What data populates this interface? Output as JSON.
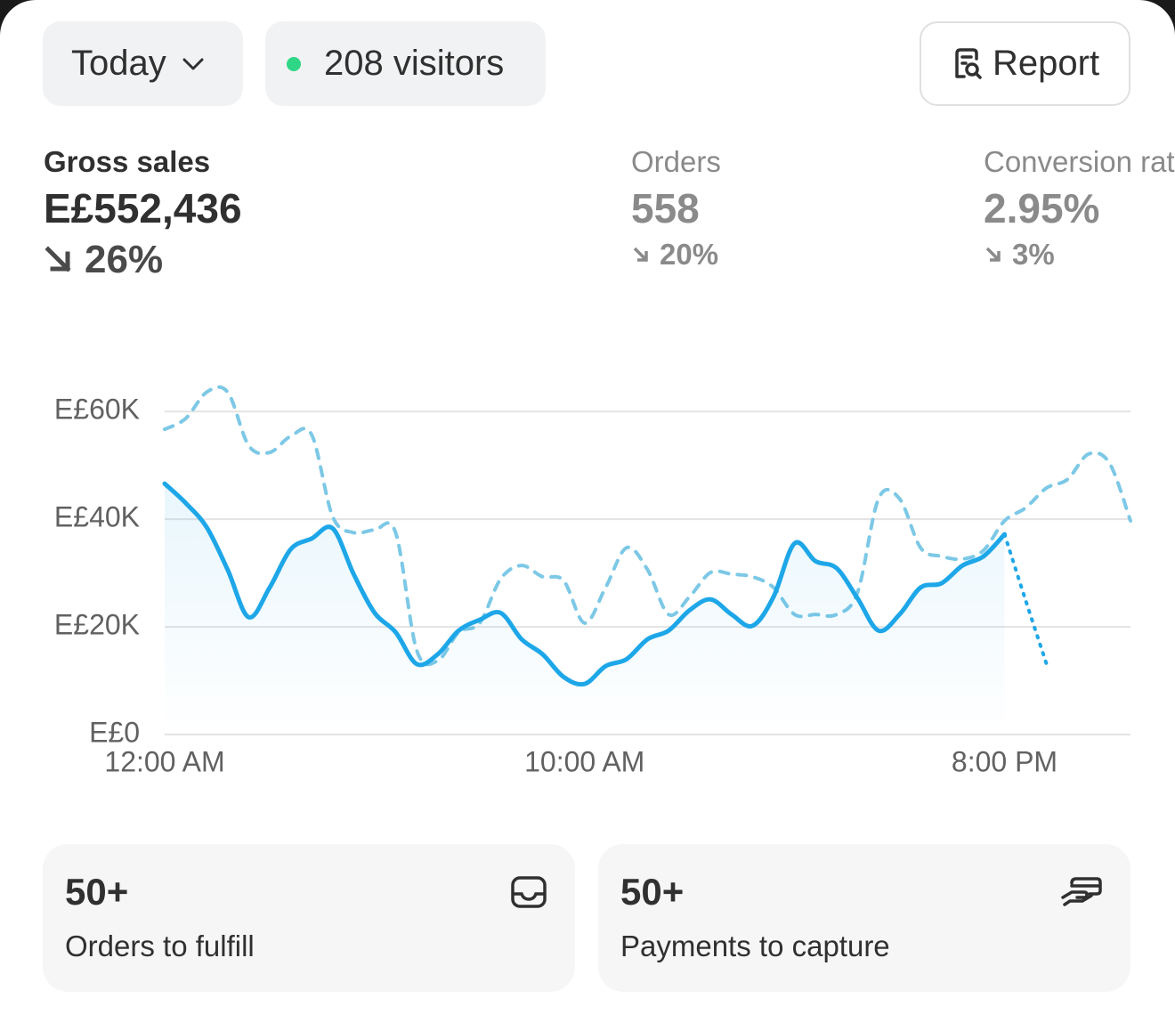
{
  "toolbar": {
    "period": "Today",
    "visitors": "208 visitors",
    "report": "Report"
  },
  "metrics": [
    {
      "label": "Gross sales",
      "value": "E£552,436",
      "change": "26%"
    },
    {
      "label": "Orders",
      "value": "558",
      "change": "20%"
    },
    {
      "label": "Conversion rate",
      "value": "2.95%",
      "change": "3%"
    }
  ],
  "chart_data": {
    "type": "line",
    "x": [
      0,
      0.5,
      1,
      1.5,
      2,
      2.5,
      3,
      3.5,
      4,
      4.5,
      5,
      5.5,
      6,
      6.5,
      7,
      7.5,
      8,
      8.5,
      9,
      9.5,
      10,
      10.5,
      11,
      11.5,
      12,
      12.5,
      13,
      13.5,
      14,
      14.5,
      15,
      15.5,
      16,
      16.5,
      17,
      17.5,
      18,
      18.5,
      19,
      19.5,
      20,
      20.5,
      21,
      21.5,
      22,
      22.5,
      23
    ],
    "series": [
      {
        "color": "#7cc8e6",
        "style": "dashed",
        "values": [
          56700,
          58700,
          63600,
          63600,
          53700,
          52400,
          55400,
          55700,
          40500,
          37500,
          38000,
          37500,
          15700,
          13700,
          19000,
          20700,
          28900,
          31400,
          29300,
          28600,
          20700,
          27300,
          34700,
          30600,
          22300,
          25600,
          30100,
          29800,
          29300,
          27300,
          22300,
          22300,
          22300,
          26400,
          43800,
          43800,
          34700,
          33100,
          32600,
          34200,
          39700,
          42100,
          45800,
          47400,
          52100,
          50400,
          39700
        ]
      },
      {
        "color": "#1ea7e8",
        "style": "solid",
        "area": true,
        "values": [
          46600,
          43000,
          38500,
          30600,
          21800,
          27300,
          34400,
          36400,
          38300,
          29800,
          22600,
          19000,
          13100,
          14900,
          19300,
          21300,
          22600,
          17700,
          14900,
          10700,
          9400,
          12700,
          14000,
          17700,
          19300,
          23100,
          25100,
          22300,
          20200,
          25600,
          35500,
          32200,
          30900,
          25300,
          19300,
          22300,
          27300,
          28100,
          31400,
          33100,
          37200,
          null,
          null,
          null,
          null,
          null,
          null
        ]
      },
      {
        "color": "#1ea7e8",
        "style": "dotted",
        "values": [
          null,
          null,
          null,
          null,
          null,
          null,
          null,
          null,
          null,
          null,
          null,
          null,
          null,
          null,
          null,
          null,
          null,
          null,
          null,
          null,
          null,
          null,
          null,
          null,
          null,
          null,
          null,
          null,
          null,
          null,
          null,
          null,
          null,
          null,
          null,
          null,
          null,
          null,
          null,
          null,
          37200,
          25000,
          13100,
          null,
          null,
          null,
          null
        ]
      }
    ],
    "xlim": [
      0,
      23
    ],
    "xticks": [
      {
        "value": 0,
        "label": "12:00 AM"
      },
      {
        "value": 10,
        "label": "10:00 AM"
      },
      {
        "value": 20,
        "label": "8:00 PM"
      }
    ],
    "ylim": [
      0,
      65000
    ],
    "yticks": [
      {
        "value": 0,
        "label": "E£0"
      },
      {
        "value": 20000,
        "label": "E£20K"
      },
      {
        "value": 40000,
        "label": "E£40K"
      },
      {
        "value": 60000,
        "label": "E£60K"
      }
    ],
    "grid": true
  },
  "cards": [
    {
      "count": "50+",
      "label": "Orders to fulfill"
    },
    {
      "count": "50+",
      "label": "Payments to capture"
    }
  ]
}
